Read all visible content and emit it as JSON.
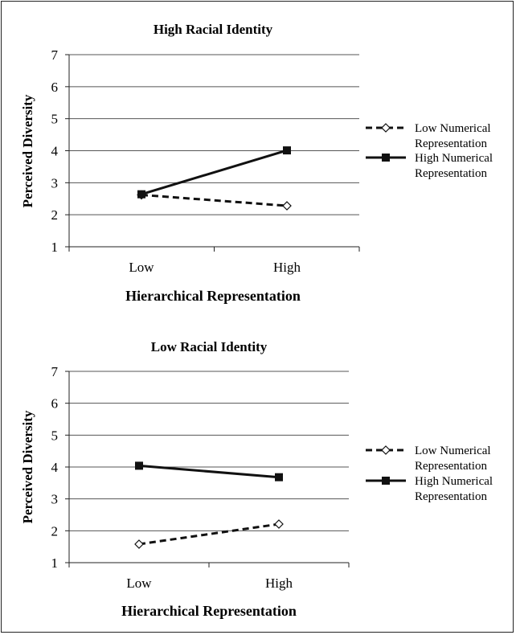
{
  "chart_data": [
    {
      "type": "line",
      "title": "High Racial Identity",
      "xlabel": "Hierarchical Representation",
      "ylabel": "Perceived Diversity",
      "categories": [
        "Low",
        "High"
      ],
      "ylim": [
        1,
        7
      ],
      "yticks": [
        "1",
        "2",
        "3",
        "4",
        "5",
        "6",
        "7"
      ],
      "grid": true,
      "legend_position": "right",
      "series": [
        {
          "name": "Low Numerical Representation",
          "legend_lines": [
            "Low Numerical",
            "Representation"
          ],
          "values": [
            2.62,
            2.28
          ],
          "style": "dashed",
          "marker": "diamond-open"
        },
        {
          "name": "High Numerical Representation",
          "legend_lines": [
            "High Numerical",
            "Representation"
          ],
          "values": [
            2.64,
            4.01
          ],
          "style": "solid",
          "marker": "square-filled"
        }
      ]
    },
    {
      "type": "line",
      "title": "Low Racial Identity",
      "xlabel": "Hierarchical Representation",
      "ylabel": "Perceived Diversity",
      "categories": [
        "Low",
        "High"
      ],
      "ylim": [
        1,
        7
      ],
      "yticks": [
        "1",
        "2",
        "3",
        "4",
        "5",
        "6",
        "7"
      ],
      "grid": true,
      "legend_position": "right",
      "series": [
        {
          "name": "Low Numerical Representation",
          "legend_lines": [
            "Low Numerical",
            "Representation"
          ],
          "values": [
            1.58,
            2.21
          ],
          "style": "dashed",
          "marker": "diamond-open"
        },
        {
          "name": "High Numerical Representation",
          "legend_lines": [
            "High Numerical",
            "Representation"
          ],
          "values": [
            4.04,
            3.68
          ],
          "style": "solid",
          "marker": "square-filled"
        }
      ]
    }
  ]
}
